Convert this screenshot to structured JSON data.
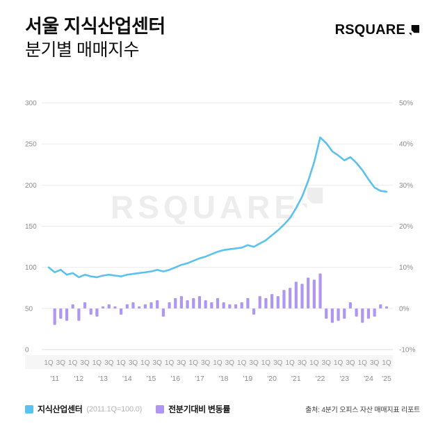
{
  "header": {
    "title_line1": "서울 지식산업센터",
    "title_line2": "분기별 매매지수",
    "logo_text": "RSQUARE"
  },
  "watermark": "RSQUARE",
  "legend": [
    {
      "swatch": "#5BC2F0",
      "label": "지식산업센터",
      "note": "(2011.1Q=100.0)"
    },
    {
      "swatch": "#AE96F2",
      "label": "전분기대비 변동률",
      "note": ""
    }
  ],
  "source": "출처: 4분기 오피스 자산 매매지표 리포트",
  "chart_data": {
    "type": "line+bar",
    "title": "서울 지식산업센터 분기별 매매지수",
    "left_axis": {
      "ticks": [
        0,
        50,
        100,
        150,
        200,
        250,
        300
      ],
      "range": [
        0,
        300
      ]
    },
    "right_axis": {
      "ticks": [
        "-10%",
        "0%",
        "10%",
        "20%",
        "30%",
        "40%",
        "50%"
      ],
      "range": [
        -10,
        50
      ]
    },
    "years": [
      "'11",
      "'12",
      "'13",
      "'14",
      "'15",
      "'16",
      "'17",
      "'18",
      "'19",
      "'20",
      "'21",
      "'22",
      "'23",
      "'24",
      "'25"
    ],
    "quarter_ticks": [
      "1Q",
      "3Q"
    ],
    "series": [
      {
        "name": "지식산업센터",
        "type": "line",
        "axis": "left",
        "color": "#5BC2F0",
        "values": [
          100,
          94,
          97,
          91,
          93,
          88,
          91,
          89,
          88,
          90,
          91,
          90,
          89,
          91,
          92,
          93,
          94,
          95,
          97,
          95,
          97,
          100,
          103,
          105,
          108,
          111,
          113,
          116,
          119,
          121,
          122,
          123,
          124,
          127,
          125,
          129,
          133,
          139,
          145,
          152,
          160,
          172,
          186,
          205,
          228,
          258,
          251,
          241,
          236,
          230,
          234,
          227,
          218,
          207,
          197,
          193,
          192
        ]
      },
      {
        "name": "전분기대비 변동률",
        "type": "bar",
        "axis": "right",
        "unit": "%",
        "color": "#AE96F2",
        "values": [
          null,
          -4.0,
          -2.5,
          -3.0,
          1.0,
          -3.0,
          1.5,
          -1.5,
          -2.0,
          0.5,
          1.0,
          0.5,
          -1.5,
          1.0,
          1.5,
          0.5,
          1.0,
          1.5,
          2.0,
          -2.0,
          1.5,
          2.5,
          3.0,
          2.0,
          2.5,
          3.0,
          2.0,
          1.5,
          2.5,
          1.5,
          1.0,
          1.0,
          1.5,
          2.5,
          -1.5,
          3.0,
          2.5,
          3.5,
          3.0,
          4.5,
          5.0,
          6.5,
          6.0,
          7.5,
          7.0,
          8.5,
          -2.5,
          -3.5,
          -3.0,
          -2.5,
          1.5,
          -2.0,
          -3.5,
          -2.5,
          -2.0,
          1.0,
          0.5
        ]
      }
    ]
  }
}
